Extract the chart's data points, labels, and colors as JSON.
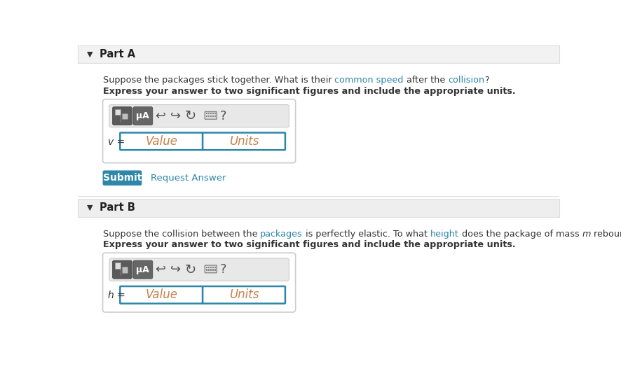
{
  "white": "#ffffff",
  "part_a_label": "Part A",
  "part_b_label": "Part B",
  "part_a_q1": "Suppose the packages stick together. What is their ",
  "part_a_q2": "common speed",
  "part_a_q3": " after the ",
  "part_a_q4": "collision",
  "part_a_q5": "?",
  "part_a_bold": "Express your answer to two significant figures and include the appropriate units.",
  "part_b_q1": "Suppose the collision between the ",
  "part_b_q2": "packages",
  "part_b_q3": " is perfectly elastic. To what ",
  "part_b_q4": "height",
  "part_b_q5": " does the package of mass ",
  "part_b_q6": "m",
  "part_b_q7": " rebound?",
  "part_b_bold": "Express your answer to two significant figures and include the appropriate units.",
  "v_label": "v =",
  "h_label": "h =",
  "value_text": "Value",
  "units_text": "Units",
  "submit_bg": "#2e86a8",
  "submit_text": "Submit",
  "submit_text_color": "#ffffff",
  "request_answer_text": "Request Answer",
  "request_answer_color": "#2e86a8",
  "box_border_color": "#cccccc",
  "input_border_color": "#2e86a8",
  "dark_text": "#333333",
  "teal_text": "#2e86a8",
  "header_a_bg": "#f2f2f2",
  "header_b_bg": "#eeeeee",
  "toolbar_bg": "#e8e8e8",
  "icon_btn_bg": "#777777",
  "icon_btn2_bg": "#888888",
  "value_color": "#c8804a",
  "units_color": "#c8804a"
}
